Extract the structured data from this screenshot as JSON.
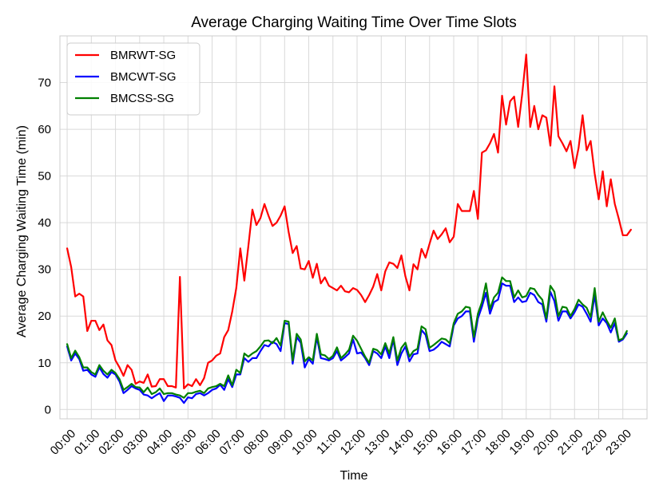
{
  "chart_data": {
    "type": "line",
    "title": "Average Charging Waiting Time Over Time Slots",
    "xlabel": "Time",
    "ylabel": "Average Charging Waiting Time (min)",
    "ylim": [
      -2,
      80
    ],
    "yticks": [
      0,
      10,
      20,
      30,
      40,
      50,
      60,
      70
    ],
    "xlim": [
      -0.3,
      24
    ],
    "xticks": [
      0,
      1,
      2,
      3,
      4,
      5,
      6,
      7,
      8,
      9,
      10,
      11,
      12,
      13,
      14,
      15,
      16,
      17,
      18,
      19,
      20,
      21,
      22,
      23
    ],
    "xtick_labels": [
      "00:00",
      "01:00",
      "02:00",
      "03:00",
      "04:00",
      "05:00",
      "06:00",
      "07:00",
      "08:00",
      "09:00",
      "10:00",
      "11:00",
      "12:00",
      "13:00",
      "14:00",
      "15:00",
      "16:00",
      "17:00",
      "18:00",
      "19:00",
      "20:00",
      "21:00",
      "22:00",
      "23:00"
    ],
    "grid": true,
    "legend_position": "top-left",
    "x_step": 0.16666667,
    "series": [
      {
        "name": "BMRWT-SG",
        "color": "#ff0000",
        "values": [
          34.5,
          30.5,
          24.2,
          24.8,
          24.2,
          16.8,
          19,
          19,
          17,
          18.2,
          14.8,
          13.8,
          10.5,
          9,
          7.2,
          9.5,
          8.5,
          5.5,
          6,
          5.7,
          7.5,
          4.9,
          5,
          6.5,
          6.5,
          5,
          5,
          4.7,
          28.4,
          4.5,
          5.4,
          5,
          6.5,
          5.2,
          6.7,
          10,
          10.5,
          11.5,
          12,
          15.5,
          17,
          21,
          26,
          34.5,
          27.6,
          35,
          42.8,
          39.5,
          41,
          44,
          41.5,
          39.3,
          40,
          41.5,
          43.5,
          38,
          33.5,
          35,
          30.2,
          30,
          31.8,
          28.2,
          31.2,
          27,
          28.3,
          26.5,
          26,
          25.5,
          26.5,
          25.3,
          25.1,
          26,
          25.6,
          24.5,
          23,
          24.5,
          26.3,
          29,
          25.5,
          29.6,
          31.5,
          31.2,
          30.3,
          33,
          28.5,
          25.5,
          31.1,
          30,
          34.4,
          32.5,
          35.5,
          38.3,
          36.5,
          37.5,
          38.8,
          35.8,
          37,
          44,
          42.5,
          42.5,
          42.5,
          46.8,
          40.8,
          55,
          55.5,
          57,
          59,
          55,
          67.2,
          61,
          66,
          67,
          60.5,
          67.5,
          76,
          60.5,
          65,
          60,
          63,
          62.5,
          56.5,
          69.2,
          58.5,
          57,
          55.3,
          57.5,
          51.7,
          56,
          63,
          55.5,
          57.5,
          50.5,
          45,
          51,
          43.5,
          49.3,
          44,
          40.8,
          37.3,
          37.3,
          38.5
        ]
      },
      {
        "name": "BMCWT-SG",
        "color": "#0000ff",
        "values": [
          13.5,
          10.5,
          12,
          10.8,
          8.3,
          8.5,
          7.5,
          7,
          9,
          7.6,
          6.8,
          8,
          7.5,
          6,
          3.5,
          4.2,
          5,
          4.5,
          4.2,
          3.2,
          3,
          2.4,
          3,
          3.5,
          1.8,
          3,
          3,
          2.8,
          2.5,
          1.4,
          2.6,
          2.4,
          3.3,
          3.5,
          3,
          3.5,
          4.2,
          4.5,
          5.3,
          4.2,
          6.5,
          4.8,
          7.5,
          7.5,
          11,
          10.2,
          11,
          11,
          12.5,
          13.8,
          13.5,
          14.5,
          14,
          12.5,
          18.5,
          18.3,
          9.8,
          15.5,
          14.3,
          9,
          10.8,
          9.8,
          15.5,
          11,
          10.8,
          10.5,
          11,
          12.5,
          10.5,
          11.2,
          12,
          15,
          12,
          12.2,
          11,
          9.5,
          12.5,
          12,
          11,
          13.5,
          11,
          15,
          9.5,
          12,
          13.5,
          10.3,
          11.8,
          12,
          17,
          16,
          12.5,
          12.8,
          13.5,
          14.5,
          14,
          13.5,
          18,
          19.5,
          20,
          21,
          21,
          14.5,
          19.5,
          22,
          25,
          20.5,
          23,
          23.5,
          27,
          26.5,
          26.5,
          23,
          24,
          23,
          23.2,
          25,
          24.5,
          23,
          22.5,
          18.8,
          25.2,
          23.2,
          19,
          21,
          21,
          19.5,
          20.8,
          22.5,
          22,
          20.5,
          18.8,
          24.5,
          18,
          19.5,
          18.5,
          16.5,
          18.5,
          14.5,
          15,
          16.3
        ]
      },
      {
        "name": "BMCSS-SG",
        "color": "#008000",
        "values": [
          14,
          11,
          12.6,
          11.2,
          9,
          9,
          8,
          7.5,
          9.5,
          8.3,
          7.5,
          8.5,
          7.8,
          6.5,
          4.2,
          4.8,
          5.5,
          4.8,
          4.7,
          3.7,
          4.7,
          3.3,
          3.7,
          4.5,
          3.3,
          3.5,
          3.5,
          3.2,
          3,
          2.5,
          3.5,
          3.5,
          3.8,
          4,
          3.5,
          4.5,
          4.8,
          5,
          5.5,
          5,
          7.3,
          5.2,
          8.5,
          7.8,
          12,
          11.3,
          12,
          12.5,
          13.5,
          14.7,
          14.8,
          14.2,
          15.3,
          13.7,
          19,
          18.8,
          10.5,
          16.2,
          15,
          10.3,
          11.2,
          10.5,
          16.2,
          11.8,
          11.6,
          10.8,
          11.5,
          13.3,
          11,
          11.8,
          12.8,
          15.8,
          14.7,
          13,
          11.3,
          10,
          13,
          12.7,
          11.8,
          14.2,
          12,
          15.5,
          10.5,
          13.2,
          14.3,
          11.3,
          12.5,
          13,
          17.8,
          17.2,
          13.2,
          13.8,
          14.5,
          15.2,
          15,
          14.2,
          18.5,
          20.5,
          21,
          22,
          21.8,
          15.5,
          20.5,
          23,
          27,
          21.5,
          24,
          25,
          28.3,
          27.5,
          27.5,
          24,
          25.5,
          24,
          24.3,
          26,
          25.8,
          24.5,
          23.5,
          19.5,
          26.5,
          25.2,
          20,
          22,
          21.8,
          20,
          21.5,
          23.5,
          22.5,
          21.8,
          19.8,
          26,
          18.8,
          20.8,
          19,
          17.5,
          19.5,
          14.8,
          15.2,
          16.8
        ]
      }
    ]
  }
}
